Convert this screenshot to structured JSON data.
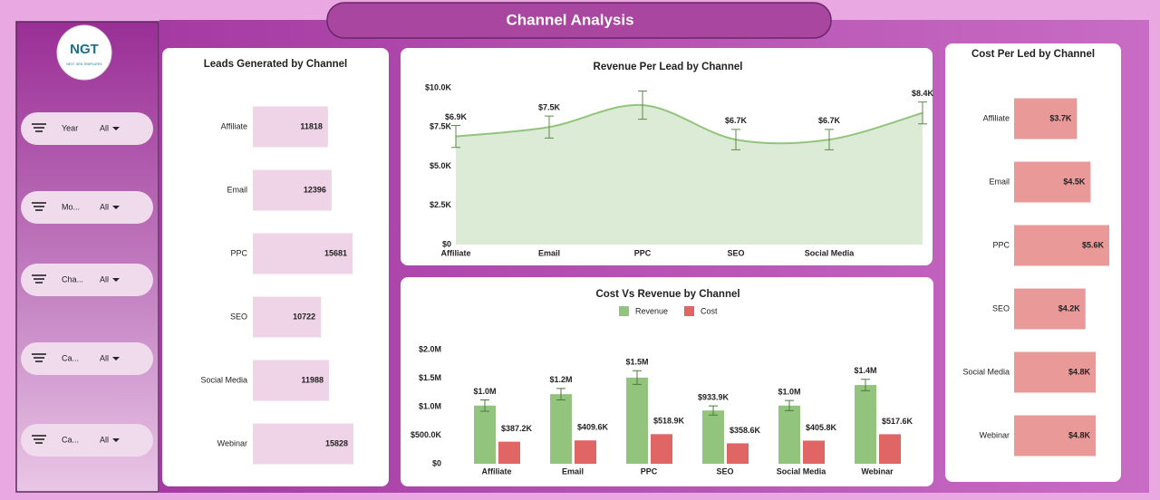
{
  "header": {
    "title": "Channel Analysis"
  },
  "logo": {
    "text": "NGT",
    "tagline": "NEXT GEN TEMPLATES"
  },
  "filters": [
    {
      "label": "Year",
      "value": "All"
    },
    {
      "label": "Mo...",
      "value": "All"
    },
    {
      "label": "Cha...",
      "value": "All"
    },
    {
      "label": "Ca...",
      "value": "All"
    },
    {
      "label": "Ca...",
      "value": "All"
    }
  ],
  "chart_data": [
    {
      "type": "hbar",
      "title": "Leads Generated by Channel",
      "categories": [
        "Affiliate",
        "Email",
        "PPC",
        "SEO",
        "Social Media",
        "Webinar"
      ],
      "values": [
        11818,
        12396,
        15681,
        10722,
        11988,
        15828
      ],
      "color": "#efd3e6"
    },
    {
      "type": "area",
      "title": "Revenue Per Lead by Channel",
      "categories": [
        "Affiliate",
        "Email",
        "PPC",
        "SEO",
        "Social Media",
        null
      ],
      "values": [
        6900,
        7500,
        8900,
        6700,
        6700,
        8400
      ],
      "value_labels": [
        "$6.9K",
        "$7.5K",
        null,
        "$6.7K",
        "$6.7K",
        "$8.4K"
      ],
      "errors": [
        700,
        700,
        900,
        650,
        650,
        700
      ],
      "color": "#93c47d",
      "fill": "#dcebd5",
      "ylim": [
        0,
        10000
      ],
      "yticks": [
        {
          "value": 0,
          "label": "$0"
        },
        {
          "value": 2500,
          "label": "$2.5K"
        },
        {
          "value": 5000,
          "label": "$5.0K"
        },
        {
          "value": 7500,
          "label": "$7.5K"
        },
        {
          "value": 10000,
          "label": "$10.0K"
        }
      ]
    },
    {
      "type": "grouped-bar",
      "title": "Cost Vs Revenue by Channel",
      "categories": [
        "Affiliate",
        "Email",
        "PPC",
        "SEO",
        "Social Media",
        "Webinar"
      ],
      "series": [
        {
          "name": "Revenue",
          "color": "#93c47d",
          "values": [
            1020000,
            1220000,
            1510000,
            933900,
            1020000,
            1380000
          ],
          "value_labels": [
            "$1.0M",
            "$1.2M",
            "$1.5M",
            "$933.9K",
            "$1.0M",
            "$1.4M"
          ],
          "errors": [
            100000,
            100000,
            120000,
            80000,
            90000,
            100000
          ]
        },
        {
          "name": "Cost",
          "color": "#e06666",
          "values": [
            387200,
            409600,
            518900,
            358600,
            405800,
            517600
          ],
          "value_labels": [
            "$387.2K",
            "$409.6K",
            "$518.9K",
            "$358.6K",
            "$405.8K",
            "$517.6K"
          ]
        }
      ],
      "ylim": [
        0,
        2000000
      ],
      "yticks": [
        {
          "value": 0,
          "label": "$0"
        },
        {
          "value": 500000,
          "label": "$500.0K"
        },
        {
          "value": 1000000,
          "label": "$1.0M"
        },
        {
          "value": 1500000,
          "label": "$1.5M"
        },
        {
          "value": 2000000,
          "label": "$2.0M"
        }
      ],
      "legend": "top"
    },
    {
      "type": "hbar",
      "title": "Cost Per Led by Channel",
      "categories": [
        "Affiliate",
        "Email",
        "PPC",
        "SEO",
        "Social Media",
        "Webinar"
      ],
      "values": [
        3700,
        4500,
        5600,
        4200,
        4800,
        4800
      ],
      "value_labels": [
        "$3.7K",
        "$4.5K",
        "$5.6K",
        "$4.2K",
        "$4.8K",
        "$4.8K"
      ],
      "color": "#ea9999"
    }
  ]
}
